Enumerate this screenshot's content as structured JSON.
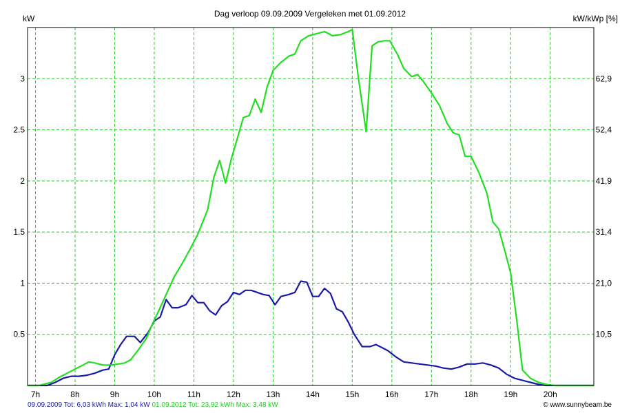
{
  "chart_data": {
    "type": "line",
    "title": "Dag  verloop 09.09.2009   Vergeleken met 01.09.2012",
    "ylabel": "kW",
    "ylabel_right": "kW/kWp [%]",
    "ylim": [
      0,
      3.5
    ],
    "xlim": [
      6.8,
      21.1
    ],
    "grid": true,
    "x_ticks": [
      {
        "x": 7,
        "label": "7h"
      },
      {
        "x": 8,
        "label": "8h"
      },
      {
        "x": 9,
        "label": "9h"
      },
      {
        "x": 10,
        "label": "10h"
      },
      {
        "x": 11,
        "label": "11h"
      },
      {
        "x": 12,
        "label": "12h"
      },
      {
        "x": 13,
        "label": "13h"
      },
      {
        "x": 14,
        "label": "14h"
      },
      {
        "x": 15,
        "label": "15h"
      },
      {
        "x": 16,
        "label": "16h"
      },
      {
        "x": 17,
        "label": "17h"
      },
      {
        "x": 18,
        "label": "18h"
      },
      {
        "x": 19,
        "label": "19h"
      },
      {
        "x": 20,
        "label": "20h"
      }
    ],
    "y_ticks": [
      {
        "y": 0.5,
        "label": "0.5"
      },
      {
        "y": 1,
        "label": "1"
      },
      {
        "y": 1.5,
        "label": "1.5"
      },
      {
        "y": 2,
        "label": "2"
      },
      {
        "y": 2.5,
        "label": "2.5"
      },
      {
        "y": 3,
        "label": "3"
      }
    ],
    "y_ticks_right": [
      {
        "y": 0.5,
        "label": "10,5"
      },
      {
        "y": 1,
        "label": "21,0"
      },
      {
        "y": 1.5,
        "label": "31,4"
      },
      {
        "y": 2,
        "label": "41,9"
      },
      {
        "y": 2.5,
        "label": "52,4"
      },
      {
        "y": 3,
        "label": "62,9"
      }
    ],
    "series": [
      {
        "color": "#1a1aa6",
        "points": [
          [
            6.8,
            0
          ],
          [
            7.3,
            0
          ],
          [
            7.5,
            0.03
          ],
          [
            7.7,
            0.07
          ],
          [
            7.9,
            0.09
          ],
          [
            8.1,
            0.09
          ],
          [
            8.3,
            0.1
          ],
          [
            8.5,
            0.12
          ],
          [
            8.7,
            0.15
          ],
          [
            8.85,
            0.16
          ],
          [
            9.0,
            0.3
          ],
          [
            9.15,
            0.4
          ],
          [
            9.3,
            0.48
          ],
          [
            9.5,
            0.48
          ],
          [
            9.65,
            0.42
          ],
          [
            9.85,
            0.52
          ],
          [
            10.0,
            0.63
          ],
          [
            10.15,
            0.67
          ],
          [
            10.3,
            0.84
          ],
          [
            10.45,
            0.76
          ],
          [
            10.6,
            0.76
          ],
          [
            10.8,
            0.79
          ],
          [
            10.95,
            0.88
          ],
          [
            11.1,
            0.81
          ],
          [
            11.25,
            0.81
          ],
          [
            11.4,
            0.73
          ],
          [
            11.55,
            0.69
          ],
          [
            11.7,
            0.78
          ],
          [
            11.85,
            0.82
          ],
          [
            12.0,
            0.91
          ],
          [
            12.15,
            0.89
          ],
          [
            12.3,
            0.93
          ],
          [
            12.45,
            0.93
          ],
          [
            12.6,
            0.91
          ],
          [
            12.75,
            0.89
          ],
          [
            12.9,
            0.88
          ],
          [
            13.05,
            0.79
          ],
          [
            13.2,
            0.87
          ],
          [
            13.4,
            0.89
          ],
          [
            13.55,
            0.91
          ],
          [
            13.7,
            1.02
          ],
          [
            13.85,
            1.01
          ],
          [
            14.0,
            0.87
          ],
          [
            14.15,
            0.87
          ],
          [
            14.3,
            0.95
          ],
          [
            14.45,
            0.9
          ],
          [
            14.6,
            0.75
          ],
          [
            14.75,
            0.72
          ],
          [
            14.9,
            0.62
          ],
          [
            15.05,
            0.5
          ],
          [
            15.25,
            0.38
          ],
          [
            15.45,
            0.38
          ],
          [
            15.6,
            0.4
          ],
          [
            15.75,
            0.37
          ],
          [
            15.9,
            0.34
          ],
          [
            16.1,
            0.28
          ],
          [
            16.3,
            0.23
          ],
          [
            16.5,
            0.22
          ],
          [
            16.7,
            0.21
          ],
          [
            16.9,
            0.2
          ],
          [
            17.1,
            0.19
          ],
          [
            17.3,
            0.17
          ],
          [
            17.5,
            0.16
          ],
          [
            17.7,
            0.18
          ],
          [
            17.9,
            0.21
          ],
          [
            18.1,
            0.21
          ],
          [
            18.3,
            0.22
          ],
          [
            18.5,
            0.2
          ],
          [
            18.7,
            0.17
          ],
          [
            18.9,
            0.11
          ],
          [
            19.1,
            0.07
          ],
          [
            19.3,
            0.05
          ],
          [
            19.5,
            0.03
          ],
          [
            19.7,
            0.01
          ],
          [
            19.9,
            0
          ],
          [
            21.1,
            0
          ]
        ]
      },
      {
        "color": "#22dd22",
        "points": [
          [
            6.8,
            0
          ],
          [
            7.1,
            0
          ],
          [
            7.4,
            0.03
          ],
          [
            7.6,
            0.08
          ],
          [
            7.8,
            0.12
          ],
          [
            8.0,
            0.16
          ],
          [
            8.2,
            0.2
          ],
          [
            8.35,
            0.23
          ],
          [
            8.5,
            0.22
          ],
          [
            8.7,
            0.2
          ],
          [
            8.9,
            0.2
          ],
          [
            9.1,
            0.21
          ],
          [
            9.25,
            0.22
          ],
          [
            9.4,
            0.25
          ],
          [
            9.6,
            0.35
          ],
          [
            9.8,
            0.46
          ],
          [
            9.95,
            0.6
          ],
          [
            10.1,
            0.72
          ],
          [
            10.3,
            0.89
          ],
          [
            10.5,
            1.06
          ],
          [
            10.7,
            1.19
          ],
          [
            10.9,
            1.33
          ],
          [
            11.1,
            1.48
          ],
          [
            11.35,
            1.72
          ],
          [
            11.5,
            2.03
          ],
          [
            11.65,
            2.2
          ],
          [
            11.8,
            1.98
          ],
          [
            11.95,
            2.22
          ],
          [
            12.1,
            2.42
          ],
          [
            12.25,
            2.62
          ],
          [
            12.4,
            2.64
          ],
          [
            12.55,
            2.8
          ],
          [
            12.7,
            2.67
          ],
          [
            12.85,
            2.92
          ],
          [
            13.0,
            3.08
          ],
          [
            13.2,
            3.16
          ],
          [
            13.4,
            3.22
          ],
          [
            13.55,
            3.24
          ],
          [
            13.7,
            3.37
          ],
          [
            13.9,
            3.42
          ],
          [
            14.1,
            3.44
          ],
          [
            14.3,
            3.46
          ],
          [
            14.5,
            3.42
          ],
          [
            14.7,
            3.43
          ],
          [
            14.9,
            3.46
          ],
          [
            15.0,
            3.48
          ],
          [
            15.15,
            3.02
          ],
          [
            15.35,
            2.48
          ],
          [
            15.5,
            3.32
          ],
          [
            15.65,
            3.36
          ],
          [
            15.8,
            3.37
          ],
          [
            15.95,
            3.37
          ],
          [
            16.15,
            3.23
          ],
          [
            16.3,
            3.1
          ],
          [
            16.5,
            3.02
          ],
          [
            16.65,
            3.04
          ],
          [
            16.8,
            2.97
          ],
          [
            17.0,
            2.86
          ],
          [
            17.2,
            2.74
          ],
          [
            17.4,
            2.56
          ],
          [
            17.55,
            2.47
          ],
          [
            17.7,
            2.45
          ],
          [
            17.85,
            2.24
          ],
          [
            18.0,
            2.24
          ],
          [
            18.2,
            2.08
          ],
          [
            18.4,
            1.88
          ],
          [
            18.55,
            1.6
          ],
          [
            18.7,
            1.53
          ],
          [
            18.85,
            1.32
          ],
          [
            19.0,
            1.1
          ],
          [
            19.15,
            0.65
          ],
          [
            19.3,
            0.15
          ],
          [
            19.5,
            0.07
          ],
          [
            19.7,
            0.03
          ],
          [
            19.9,
            0.01
          ],
          [
            20.1,
            0
          ],
          [
            21.1,
            0
          ]
        ]
      }
    ]
  },
  "footer": {
    "blue_text": "09.09.2009 Tot: 6,03 kWh Max: 1,04 kW",
    "green_text": "01.09.2012 Tot: 23,92 kWh Max: 3,48 kW",
    "credit": "© www.sunnybeam.be"
  }
}
